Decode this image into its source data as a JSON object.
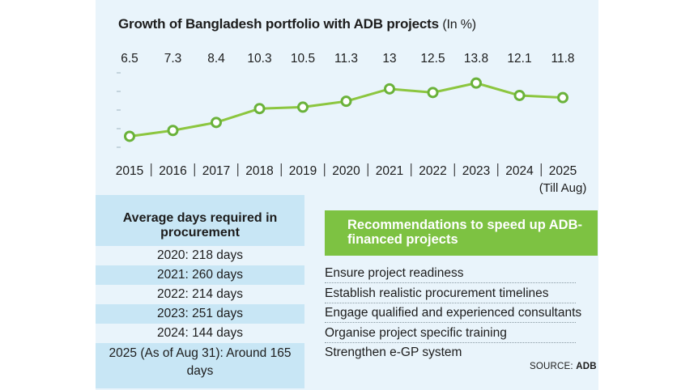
{
  "title": "Growth of Bangladesh portfolio with ADB projects",
  "title_unit": "(In %)",
  "chart_data": {
    "type": "line",
    "title": "Growth of Bangladesh portfolio with ADB projects (In %)",
    "categories": [
      "2015",
      "2016",
      "2017",
      "2018",
      "2019",
      "2020",
      "2021",
      "2022",
      "2023",
      "2024",
      "2025"
    ],
    "x_sublabel": "(Till Aug)",
    "values": [
      6.5,
      7.3,
      8.4,
      10.3,
      10.5,
      11.3,
      13,
      12.5,
      13.8,
      12.1,
      11.8
    ],
    "value_labels": [
      "6.5",
      "7.3",
      "8.4",
      "10.3",
      "10.5",
      "11.3",
      "13",
      "12.5",
      "13.8",
      "12.1",
      "11.8"
    ],
    "ylim": [
      5.0,
      15.2
    ],
    "line_color": "#8cc63f",
    "marker_fill": "#ffffff",
    "marker_stroke": "#6ab23a"
  },
  "procurement": {
    "title": "Average days required in procurement",
    "rows": [
      "2020: 218 days",
      "2021: 260 days",
      "2022: 214 days",
      "2023: 251 days",
      "2024: 144 days",
      "2025 (As of Aug 31): Around 165 days"
    ]
  },
  "recommendations": {
    "title": "Recommendations to speed up ADB-financed projects",
    "items": [
      "Ensure project readiness",
      "Establish realistic procurement timelines",
      "Engage qualified and experienced consultants",
      "Organise project specific training",
      "Strengthen e-GP system"
    ]
  },
  "source": {
    "label": "SOURCE:",
    "name": "ADB"
  },
  "colors": {
    "panel": "#e9f4fb",
    "shade": "#c8e6f5",
    "accent": "#7dc242"
  }
}
